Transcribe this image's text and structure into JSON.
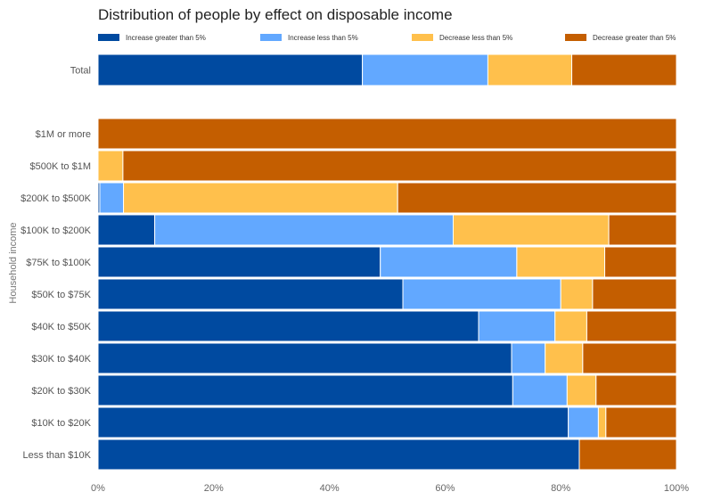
{
  "chart_data": {
    "type": "bar",
    "orientation": "horizontal",
    "stacked": true,
    "normalized": true,
    "title": "Distribution of people by effect on disposable income",
    "ylabel": "Household income",
    "xlabel": "",
    "xlim": [
      0,
      100
    ],
    "x_ticks": [
      "0%",
      "20%",
      "40%",
      "60%",
      "80%",
      "100%"
    ],
    "legend_position": "top",
    "series_names": [
      "Increase greater than 5%",
      "Increase less than 5%",
      "Decrease less than 5%",
      "Decrease greater than 5%"
    ],
    "colors": [
      "#004aa0",
      "#62a8ff",
      "#ffc04c",
      "#c45e00"
    ],
    "total_group": {
      "category": "Total",
      "values": [
        45.7,
        21.7,
        14.5,
        18.1
      ]
    },
    "categories": [
      "$1M or more",
      "$500K to $1M",
      "$200K to $500K",
      "$100K to $200K",
      "$75K to $100K",
      "$50K to $75K",
      "$40K to $50K",
      "$30K to $40K",
      "$20K to $30K",
      "$10K to $20K",
      "Less than $10K"
    ],
    "series": [
      {
        "name": "Increase greater than 5%",
        "values": [
          0,
          0,
          0.3,
          9.8,
          48.8,
          52.7,
          65.8,
          71.5,
          71.7,
          81.3,
          83.2
        ]
      },
      {
        "name": "Increase less than 5%",
        "values": [
          0,
          0,
          4.1,
          51.6,
          23.6,
          27.3,
          13.2,
          5.8,
          9.4,
          5.2,
          0
        ]
      },
      {
        "name": "Decrease less than 5%",
        "values": [
          0,
          4.3,
          47.4,
          26.9,
          15.2,
          5.5,
          5.5,
          6.5,
          5.0,
          1.3,
          0
        ]
      },
      {
        "name": "Decrease greater than 5%",
        "values": [
          100,
          95.7,
          48.2,
          11.7,
          12.4,
          14.5,
          15.5,
          16.2,
          13.9,
          12.2,
          16.8
        ]
      }
    ]
  }
}
